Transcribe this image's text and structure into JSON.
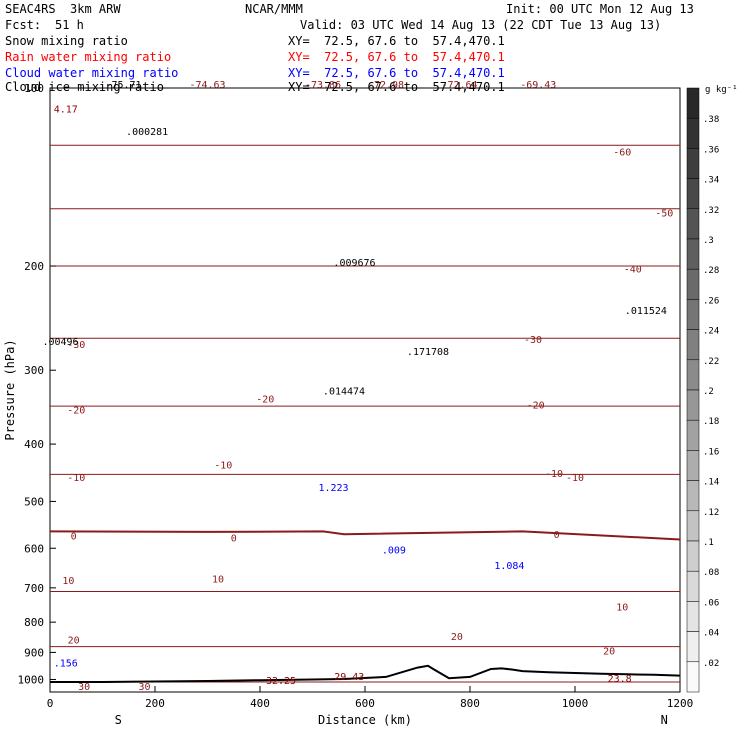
{
  "header": {
    "project": "SEAC4RS  3km ARW",
    "center": "NCAR/MMM",
    "init": "Init: 00 UTC Mon 12 Aug 13",
    "fcst_label": "Fcst:",
    "fcst_value": "51 h",
    "valid": "Valid: 03 UTC Wed 14 Aug 13 (22 CDT Tue 13 Aug 13)"
  },
  "fields": [
    {
      "name": "Snow mixing ratio",
      "xy": "XY=  72.5, 67.6 to  57.4,470.1",
      "color": "#000000"
    },
    {
      "name": "Rain water mixing ratio",
      "xy": "XY=  72.5, 67.6 to  57.4,470.1",
      "color": "#ff0000"
    },
    {
      "name": "Cloud water mixing ratio",
      "xy": "XY=  72.5, 67.6 to  57.4,470.1",
      "color": "#0000ff"
    },
    {
      "name": "Cloud ice mixing ratio",
      "xy": "XY=  72.5, 67.6 to  57.4,470.1",
      "color": "#000000"
    }
  ],
  "colorbar": {
    "unit": "g kg⁻¹",
    "levels": [
      ".38",
      ".36",
      ".34",
      ".32",
      ".3",
      ".28",
      ".26",
      ".24",
      ".22",
      ".2",
      ".18",
      ".16",
      ".14",
      ".12",
      ".1",
      ".08",
      ".06",
      ".04",
      ".02"
    ]
  },
  "chart_data": {
    "type": "cross-section",
    "xlabel": "Distance (km)",
    "ylabel": "Pressure (hPa)",
    "xlim": [
      0,
      1200
    ],
    "ylim": [
      1050,
      100
    ],
    "x_ticks": [
      "0",
      "200",
      "400",
      "600",
      "800",
      "1000",
      "1200"
    ],
    "y_ticks": [
      "100",
      "200",
      "300",
      "400",
      "500",
      "600",
      "700",
      "800",
      "900",
      "1000"
    ],
    "y_ticks_values": [
      100,
      200,
      300,
      400,
      500,
      600,
      700,
      800,
      900,
      1000
    ],
    "x_ticks_values": [
      0,
      200,
      400,
      600,
      800,
      1000,
      1200
    ],
    "endpoints": {
      "left": "S",
      "right": "N"
    },
    "temperature_isotherms": [
      {
        "label": "-60",
        "x": [
          0,
          300,
          600,
          900,
          1200
        ],
        "p": [
          125,
          125,
          125,
          125,
          125
        ]
      },
      {
        "label": "-50",
        "x": [
          0,
          300,
          600,
          900,
          1200
        ],
        "p": [
          160,
          160,
          160,
          160,
          160
        ]
      },
      {
        "label": "-40",
        "x": [
          0,
          300,
          600,
          900,
          1200
        ],
        "p": [
          200,
          200,
          200,
          200,
          200
        ]
      },
      {
        "label": "-30",
        "x": [
          0,
          300,
          600,
          900,
          1200
        ],
        "p": [
          265,
          265,
          265,
          265,
          265
        ]
      },
      {
        "label": "-20",
        "x": [
          0,
          300,
          600,
          900,
          1200
        ],
        "p": [
          345,
          345,
          345,
          345,
          345
        ]
      },
      {
        "label": "-10",
        "x": [
          0,
          300,
          600,
          900,
          1200
        ],
        "p": [
          450,
          450,
          450,
          450,
          450
        ]
      },
      {
        "label": "0",
        "x": [
          0,
          300,
          520,
          560,
          900,
          1200
        ],
        "p": [
          562,
          563,
          562,
          568,
          562,
          580
        ]
      },
      {
        "label": "10",
        "x": [
          0,
          300,
          600,
          900,
          1200
        ],
        "p": [
          710,
          710,
          710,
          710,
          710
        ]
      },
      {
        "label": "20",
        "x": [
          0,
          300,
          600,
          900,
          1200
        ],
        "p": [
          880,
          880,
          880,
          880,
          880
        ]
      },
      {
        "label": "30",
        "x": [
          0,
          300,
          600,
          900,
          1200
        ],
        "p": [
          1010,
          1010,
          1010,
          1010,
          1010
        ]
      }
    ],
    "isotherm_labels": [
      {
        "text": "-74.63",
        "x": 300,
        "p": 100
      },
      {
        "text": "-73.86",
        "x": 520,
        "p": 100
      },
      {
        "text": "-72.98",
        "x": 640,
        "p": 100
      },
      {
        "text": "-72.64",
        "x": 780,
        "p": 100
      },
      {
        "text": "-69.43",
        "x": 930,
        "p": 100
      },
      {
        "text": "-60",
        "x": 1090,
        "p": 130
      },
      {
        "text": "-50",
        "x": 1170,
        "p": 165
      },
      {
        "text": "-40",
        "x": 1110,
        "p": 205
      },
      {
        "text": "-30",
        "x": 50,
        "p": 275
      },
      {
        "text": "-30",
        "x": 920,
        "p": 270
      },
      {
        "text": "-20",
        "x": 50,
        "p": 355
      },
      {
        "text": "-20",
        "x": 410,
        "p": 340
      },
      {
        "text": "-20",
        "x": 925,
        "p": 348
      },
      {
        "text": "-10",
        "x": 50,
        "p": 462
      },
      {
        "text": "-10",
        "x": 330,
        "p": 440
      },
      {
        "text": "-10",
        "x": 1000,
        "p": 462
      },
      {
        "text": "-10",
        "x": 960,
        "p": 455
      },
      {
        "text": "0",
        "x": 45,
        "p": 580
      },
      {
        "text": "0",
        "x": 350,
        "p": 585
      },
      {
        "text": "0",
        "x": 965,
        "p": 577
      },
      {
        "text": "10",
        "x": 35,
        "p": 690
      },
      {
        "text": "10",
        "x": 320,
        "p": 685
      },
      {
        "text": "10",
        "x": 1090,
        "p": 765
      },
      {
        "text": "20",
        "x": 45,
        "p": 870
      },
      {
        "text": "20",
        "x": 775,
        "p": 857
      },
      {
        "text": "20",
        "x": 1065,
        "p": 908
      },
      {
        "text": "30",
        "x": 65,
        "p": 1042
      },
      {
        "text": "30",
        "x": 180,
        "p": 1042
      }
    ],
    "max_labels": [
      {
        "text": "4.17",
        "x": 30,
        "p": 110,
        "color": "#8b0000"
      },
      {
        "text": ".000281",
        "x": 185,
        "p": 120,
        "color": "#000000"
      },
      {
        "text": "-75.71",
        "x": 140,
        "p": 100,
        "color": "#000000"
      },
      {
        "text": ".00496",
        "x": 20,
        "p": 272,
        "color": "#000000"
      },
      {
        "text": ".009676",
        "x": 580,
        "p": 200,
        "color": "#000000"
      },
      {
        "text": ".014474",
        "x": 560,
        "p": 330,
        "color": "#000000"
      },
      {
        "text": ".171708",
        "x": 720,
        "p": 283,
        "color": "#000000"
      },
      {
        "text": ".011524",
        "x": 1135,
        "p": 241,
        "color": "#000000"
      },
      {
        "text": "1.223",
        "x": 540,
        "p": 480,
        "color": "#0000ff"
      },
      {
        "text": ".009",
        "x": 655,
        "p": 612,
        "color": "#0000ff"
      },
      {
        "text": "1.084",
        "x": 875,
        "p": 650,
        "color": "#0000ff"
      },
      {
        "text": ".156",
        "x": 30,
        "p": 950,
        "color": "#0000ff"
      },
      {
        "text": "32.25",
        "x": 440,
        "p": 1018,
        "color": "#8b0000"
      },
      {
        "text": "29.43",
        "x": 570,
        "p": 1002,
        "color": "#8b0000"
      },
      {
        "text": "23.8",
        "x": 1085,
        "p": 1010,
        "color": "#8b0000"
      }
    ],
    "terrain": {
      "x": [
        0,
        100,
        200,
        300,
        400,
        500,
        560,
        640,
        700,
        720,
        730,
        760,
        800,
        840,
        860,
        880,
        900,
        950,
        1000,
        1050,
        1100,
        1150,
        1200
      ],
      "p": [
        1010,
        1010,
        1008,
        1006,
        1003,
        1000,
        998,
        990,
        955,
        948,
        960,
        995,
        990,
        960,
        958,
        962,
        968,
        972,
        975,
        978,
        980,
        982,
        985
      ]
    }
  }
}
